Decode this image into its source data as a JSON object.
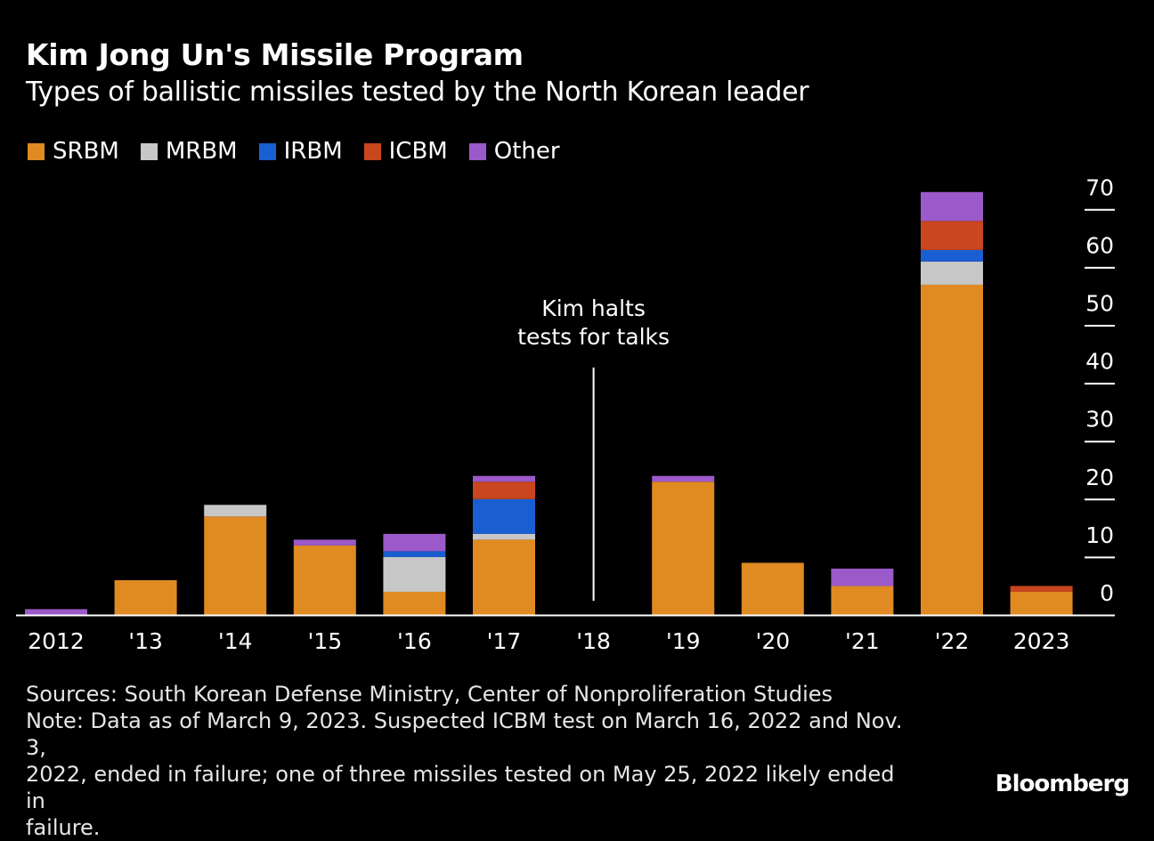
{
  "title": "Kim Jong Un's Missile Program",
  "subtitle": "Types of ballistic missiles tested by the North Korean leader",
  "legend": [
    {
      "label": "SRBM",
      "color": "#e08a22"
    },
    {
      "label": "MRBM",
      "color": "#c7c7c7"
    },
    {
      "label": "IRBM",
      "color": "#1a5fd1"
    },
    {
      "label": "ICBM",
      "color": "#c9461e"
    },
    {
      "label": "Other",
      "color": "#9b59c9"
    }
  ],
  "chart_data": {
    "type": "bar",
    "stacked": true,
    "categories": [
      "2012",
      "'13",
      "'14",
      "'15",
      "'16",
      "'17",
      "'18",
      "'19",
      "'20",
      "'21",
      "'22",
      "2023"
    ],
    "series": [
      {
        "name": "SRBM",
        "color": "#e08a22",
        "values": [
          0,
          6,
          17,
          12,
          4,
          13,
          0,
          23,
          9,
          5,
          57,
          4
        ]
      },
      {
        "name": "MRBM",
        "color": "#c7c7c7",
        "values": [
          0,
          0,
          2,
          0,
          6,
          1,
          0,
          0,
          0,
          0,
          4,
          0
        ]
      },
      {
        "name": "IRBM",
        "color": "#1a5fd1",
        "values": [
          0,
          0,
          0,
          0,
          1,
          6,
          0,
          0,
          0,
          0,
          2,
          0
        ]
      },
      {
        "name": "ICBM",
        "color": "#c9461e",
        "values": [
          0,
          0,
          0,
          0,
          0,
          3,
          0,
          0,
          0,
          0,
          5,
          1
        ]
      },
      {
        "name": "Other",
        "color": "#9b59c9",
        "values": [
          1,
          0,
          0,
          1,
          3,
          1,
          0,
          1,
          0,
          3,
          5,
          0
        ]
      }
    ],
    "ylim": [
      0,
      70
    ],
    "yticks": [
      0,
      10,
      20,
      30,
      40,
      50,
      60,
      70
    ],
    "y_axis_side": "right",
    "grid": false,
    "legend_position": "top-left",
    "annotation": {
      "category": "'18",
      "line1": "Kim halts",
      "line2": "tests for talks"
    }
  },
  "footnote": {
    "sources": "Sources: South Korean Defense Ministry, Center of Nonproliferation Studies",
    "note_line1": "Note: Data as of March 9, 2023. Suspected ICBM test on March 16, 2022 and Nov. 3,",
    "note_line2": "2022, ended in failure; one of three missiles tested on May 25, 2022 likely ended in",
    "note_line3": "failure."
  },
  "brand": "Bloomberg"
}
